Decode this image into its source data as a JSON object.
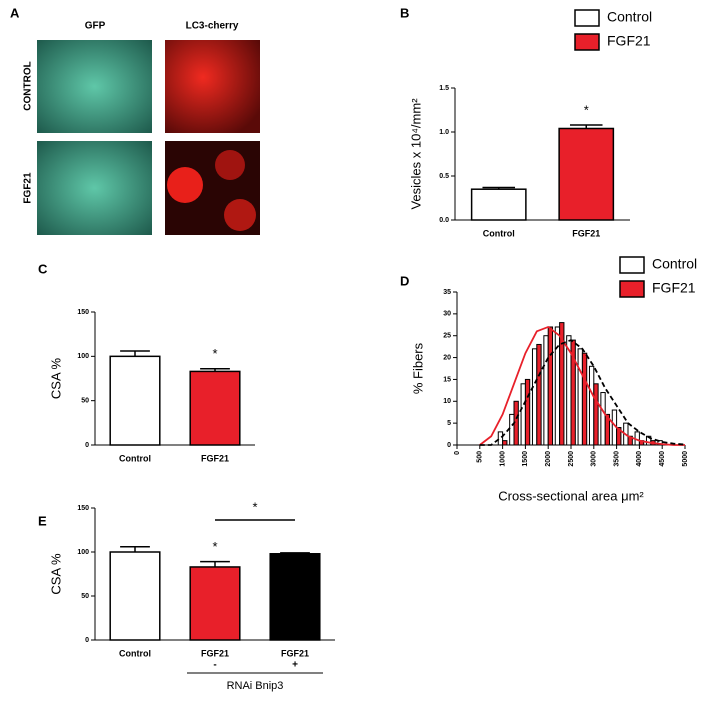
{
  "panel_a": {
    "panel": "A",
    "columns": [
      "GFP",
      "LC3-cherry"
    ],
    "rows": [
      "CONTROL",
      "FGF21"
    ]
  },
  "chart_data": [
    {
      "type": "bar",
      "panel": "B",
      "ylabel": "Vesicles x 10⁴/mm²",
      "categories": [
        "Control",
        "FGF21"
      ],
      "values": [
        0.35,
        1.04
      ],
      "errors": [
        0.02,
        0.04
      ],
      "colors": [
        "#ffffff",
        "#e8202a"
      ],
      "ylim": [
        0,
        1.5
      ],
      "yticks": [
        {
          "value": 0,
          "label": "0.0"
        },
        0.5,
        {
          "value": 1,
          "label": "1.0"
        },
        1.5
      ],
      "annotations": [
        "*"
      ],
      "legend": [
        "Control",
        "FGF21"
      ]
    },
    {
      "type": "bar",
      "panel": "C",
      "ylabel": "CSA %",
      "categories": [
        "Control",
        "FGF21"
      ],
      "values": [
        100,
        83
      ],
      "errors": [
        6,
        3
      ],
      "colors": [
        "#ffffff",
        "#e8202a"
      ],
      "ylim": [
        0,
        150
      ],
      "yticks": [
        0,
        50,
        100,
        150
      ],
      "annotations": [
        "*"
      ]
    },
    {
      "type": "grouped_bar",
      "panel": "D",
      "ylabel": "% Fibers",
      "xlabel": "Cross-sectional area μm²",
      "x": [
        1000,
        1250,
        1500,
        1750,
        2000,
        2250,
        2500,
        2750,
        3000,
        3250,
        3500,
        3750,
        4000,
        4250,
        4500
      ],
      "series": [
        {
          "name": "Control",
          "color": "#ffffff",
          "values": [
            3,
            7,
            14,
            22,
            25,
            27,
            25,
            22,
            18,
            12,
            8,
            5,
            3,
            2,
            1
          ]
        },
        {
          "name": "FGF21",
          "color": "#e8202a",
          "values": [
            1,
            10,
            15,
            23,
            27,
            28,
            24,
            21,
            14,
            7,
            4,
            2,
            1,
            1,
            0
          ]
        }
      ],
      "curves": {
        "x": [
          500,
          750,
          1000,
          1250,
          1500,
          1750,
          2000,
          2250,
          2500,
          2750,
          3000,
          3250,
          3500,
          3750,
          4000,
          4250,
          4500,
          4750,
          5000
        ],
        "series": [
          {
            "color": "#e8202a",
            "dash": false,
            "values": [
              0,
              2,
              7,
              14,
              21,
              26,
              27,
              25,
              21,
              16,
              11,
              7,
              4,
              2,
              1,
              0.5,
              0.2,
              0,
              0
            ]
          },
          {
            "color": "#000000",
            "dash": true,
            "values": [
              0,
              0,
              2,
              5,
              10,
              15,
              20,
              23,
              24,
              22,
              18,
              13,
              9,
              5,
              3,
              1.5,
              0.7,
              0.3,
              0.1
            ]
          }
        ]
      },
      "xlim": [
        0,
        5000
      ],
      "xticks": [
        0,
        500,
        1000,
        1500,
        2000,
        2500,
        3000,
        3500,
        4000,
        4500,
        5000
      ],
      "ylim": [
        0,
        35
      ],
      "yticks": [
        0,
        5,
        10,
        15,
        20,
        25,
        30,
        35
      ]
    },
    {
      "type": "bar",
      "panel": "E",
      "ylabel": "CSA %",
      "categories": [
        "Control",
        "FGF21",
        "FGF21"
      ],
      "sublabels": [
        null,
        "-",
        "+"
      ],
      "group_label": "RNAi Bnip3",
      "values": [
        100,
        83,
        98
      ],
      "errors": [
        6,
        6,
        1
      ],
      "colors": [
        "#ffffff",
        "#e8202a",
        "#000000"
      ],
      "ylim": [
        0,
        150
      ],
      "yticks": [
        0,
        50,
        100,
        150
      ],
      "annotations": [
        "*",
        "*"
      ]
    }
  ]
}
